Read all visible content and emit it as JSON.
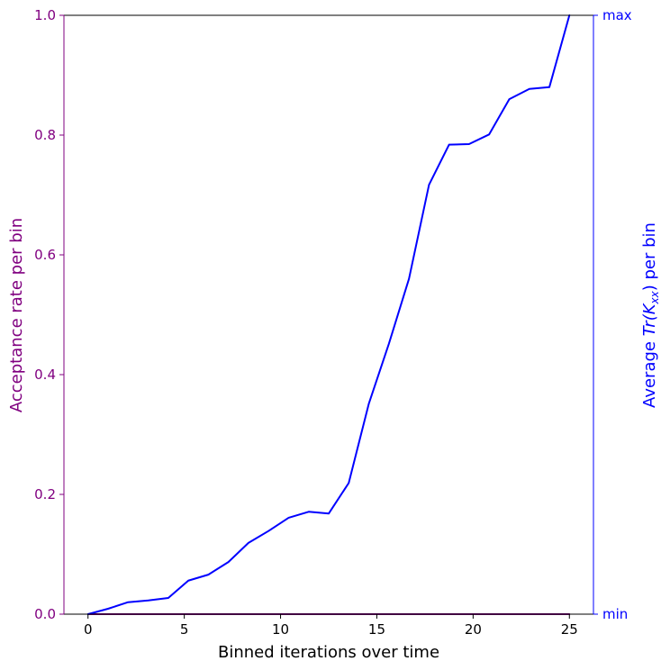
{
  "chart_data": {
    "type": "line",
    "title": "",
    "xlabel": "Binned iterations over time",
    "ylabel_left": "Acceptance rate per bin",
    "ylabel_right_prefix": "Average ",
    "ylabel_right_math": "Tr(K",
    "ylabel_right_sub": "xx",
    "ylabel_right_close": ")",
    "ylabel_right_suffix": " per bin",
    "xlim": [
      -1.25,
      26.25
    ],
    "ylim_left": [
      0.0,
      1.0
    ],
    "ylim_right": [
      0.0,
      1.0
    ],
    "x_ticks": [
      0,
      5,
      10,
      15,
      20,
      25
    ],
    "x_tick_labels": [
      "0",
      "5",
      "10",
      "15",
      "20",
      "25"
    ],
    "y_left_ticks": [
      0.0,
      0.2,
      0.4,
      0.6,
      0.8,
      1.0
    ],
    "y_left_tick_labels": [
      "0.0",
      "0.2",
      "0.4",
      "0.6",
      "0.8",
      "1.0"
    ],
    "y_right_ticks": [
      0.0,
      1.0
    ],
    "y_right_tick_labels": [
      "min",
      "max"
    ],
    "colors": {
      "left_axis": "#800080",
      "right_axis": "#0000ff",
      "frame": "#000000"
    },
    "series": [
      {
        "name": "Acceptance rate",
        "axis": "left",
        "color": "#800080",
        "x": [
          0,
          1.04,
          2.08,
          3.13,
          4.17,
          5.21,
          6.25,
          7.29,
          8.33,
          9.38,
          10.42,
          11.46,
          12.5,
          13.54,
          14.58,
          15.63,
          16.67,
          17.71,
          18.75,
          19.79,
          20.83,
          21.88,
          22.92,
          23.96,
          25
        ],
        "values": [
          0,
          0,
          0,
          0,
          0,
          0,
          0,
          0,
          0,
          0,
          0,
          0,
          0,
          0,
          0,
          0,
          0,
          0,
          0,
          0,
          0,
          0,
          0,
          0,
          0
        ]
      },
      {
        "name": "Average Tr(K_xx)",
        "axis": "right",
        "color": "#0000ff",
        "x": [
          0,
          1.04,
          2.08,
          3.13,
          4.17,
          5.21,
          6.25,
          7.29,
          8.33,
          9.38,
          10.42,
          11.46,
          12.5,
          13.54,
          14.58,
          15.63,
          16.67,
          17.71,
          18.75,
          19.79,
          20.83,
          21.88,
          22.92,
          23.96,
          25
        ],
        "values": [
          0.0,
          0.009,
          0.02,
          0.023,
          0.027,
          0.056,
          0.066,
          0.087,
          0.119,
          0.139,
          0.161,
          0.171,
          0.168,
          0.219,
          0.351,
          0.452,
          0.56,
          0.717,
          0.784,
          0.785,
          0.801,
          0.86,
          0.877,
          0.88,
          1.0
        ]
      }
    ]
  }
}
